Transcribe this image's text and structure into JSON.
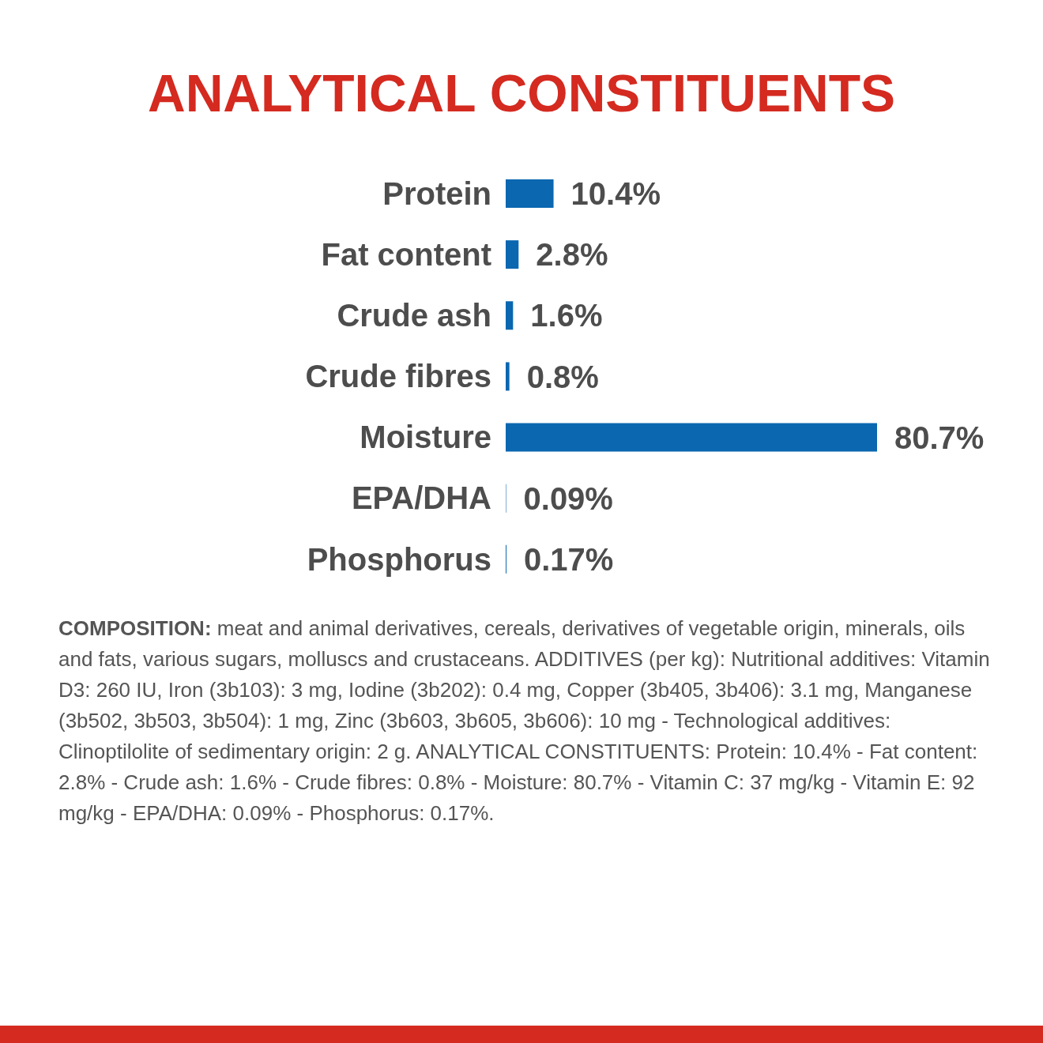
{
  "chart_data": {
    "type": "bar",
    "orientation": "horizontal",
    "title": "ANALYTICAL CONSTITUENTS",
    "categories": [
      "Protein",
      "Fat content",
      "Crude ash",
      "Crude fibres",
      "Moisture",
      "EPA/DHA",
      "Phosphorus"
    ],
    "values": [
      10.4,
      2.8,
      1.6,
      0.8,
      80.7,
      0.09,
      0.17
    ],
    "value_labels": [
      "10.4%",
      "2.8%",
      "1.6%",
      "0.8%",
      "80.7%",
      "0.09%",
      "0.17%"
    ],
    "color": "#0a67b0",
    "annotations": [
      "COMPOSITION: meat and animal derivatives, cereals, derivatives of vegetable origin, minerals, oils and fats, various sugars, molluscs and crustaceans. ADDITIVES (per kg): Nutritional additives: Vitamin D3: 260 IU, Iron (3b103): 3 mg, Iodine (3b202): 0.4 mg, Copper (3b405, 3b406): 3.1 mg, Manganese (3b502, 3b503, 3b504): 1 mg, Zinc (3b603, 3b605, 3b606): 10 mg - Technological additives: Clinoptilolite of sedimentary origin: 2 g. ANALYTICAL CONSTITUENTS: Protein: 10.4% - Fat content: 2.8% - Crude ash: 1.6% - Crude fibres: 0.8% - Moisture: 80.7% - Vitamin C: 37 mg/kg - Vitamin E: 92 mg/kg - EPA/DHA: 0.09% - Phosphorus: 0.17%."
    ]
  }
}
